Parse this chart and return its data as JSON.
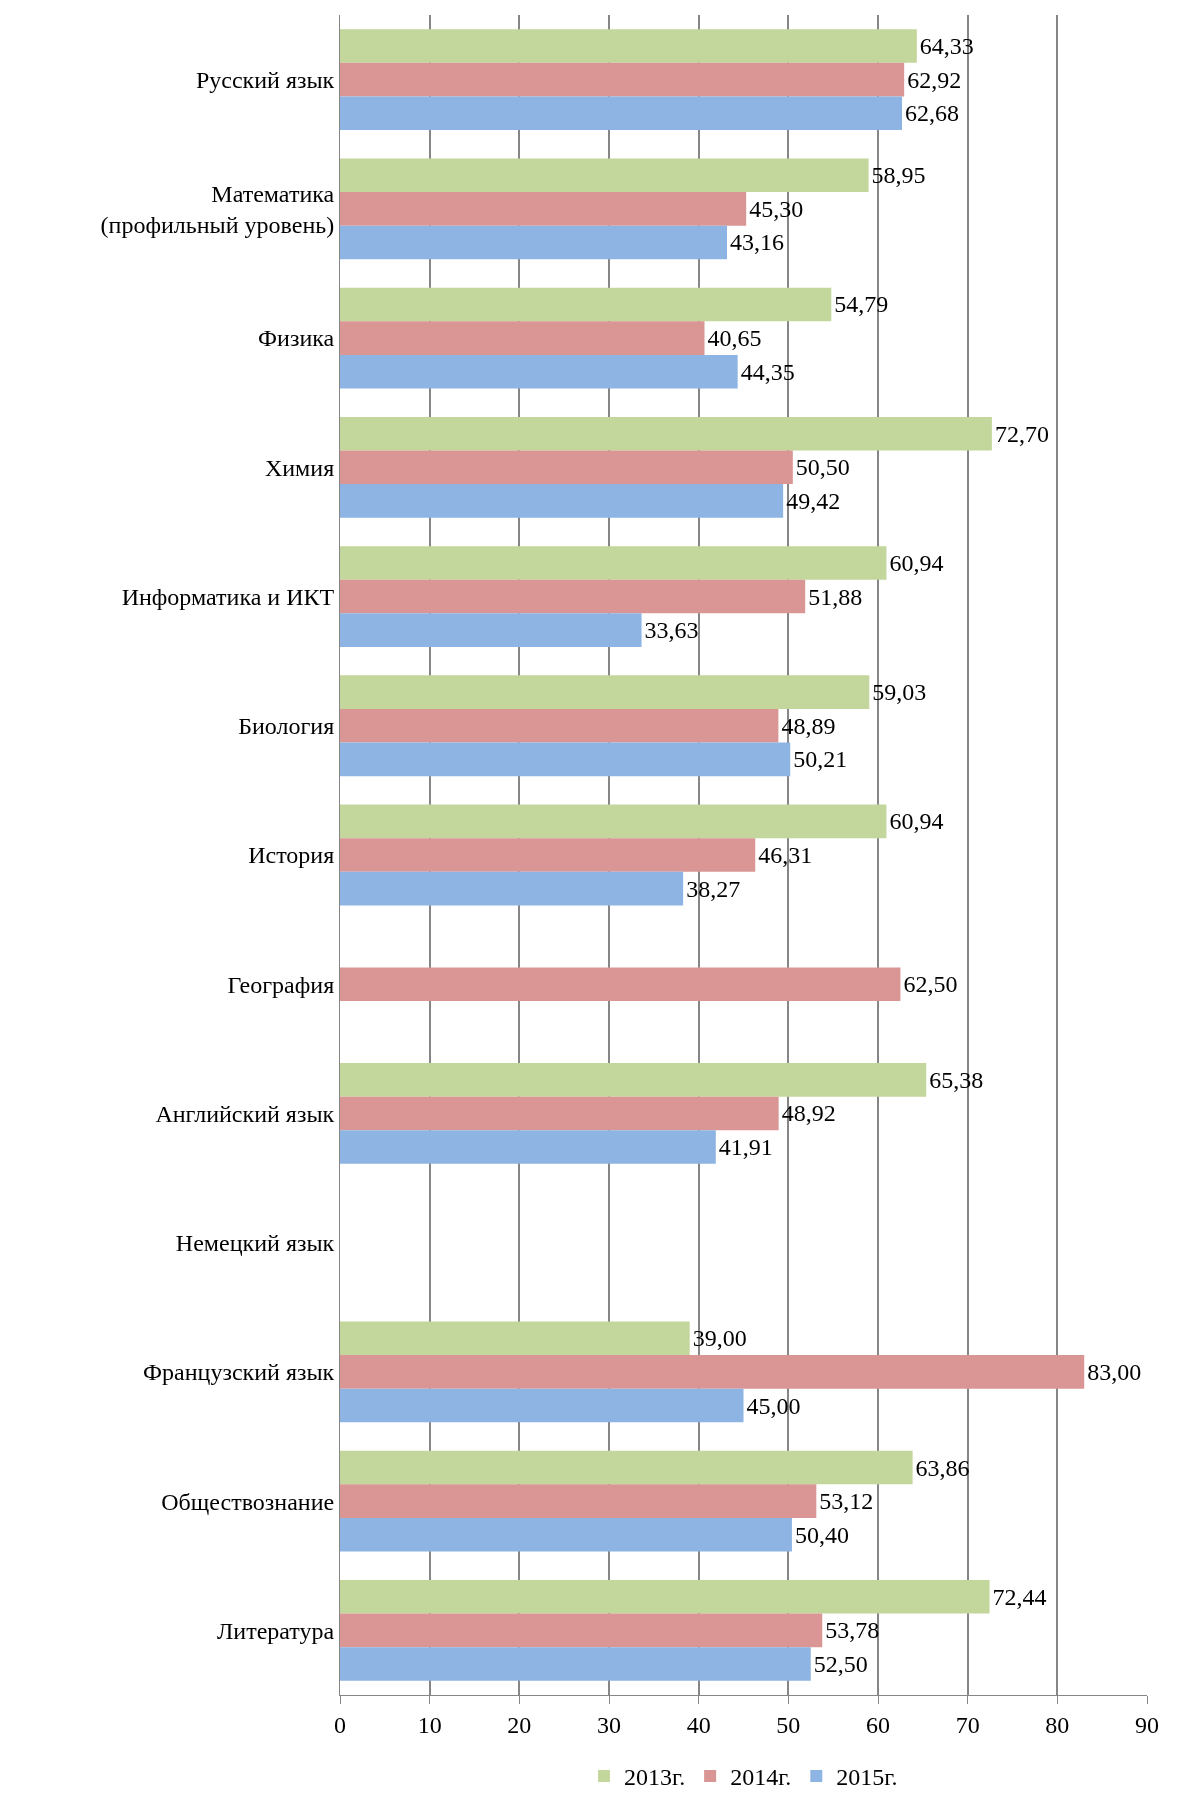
{
  "chart_data": {
    "type": "bar",
    "orientation": "horizontal",
    "categories": [
      "Русский язык",
      "Математика\n(профильный уровень)",
      "Физика",
      "Химия",
      "Информатика и ИКТ",
      "Биология",
      "История",
      "География",
      "Английский язык",
      "Немецкий язык",
      "Французский язык",
      "Обществознание",
      "Литература"
    ],
    "series": [
      {
        "name": "2013г.",
        "color": "#c3d69b",
        "values": [
          64.33,
          58.95,
          54.79,
          72.7,
          60.94,
          59.03,
          60.94,
          null,
          65.38,
          null,
          39.0,
          63.86,
          72.44
        ],
        "value_labels": [
          "64,33",
          "58,95",
          "54,79",
          "72,70",
          "60,94",
          "59,03",
          "60,94",
          null,
          "65,38",
          null,
          "39,00",
          "63,86",
          "72,44"
        ]
      },
      {
        "name": "2014г.",
        "color": "#d99694",
        "values": [
          62.92,
          45.3,
          40.65,
          50.5,
          51.88,
          48.89,
          46.31,
          62.5,
          48.92,
          null,
          83.0,
          53.12,
          53.78
        ],
        "value_labels": [
          "62,92",
          "45,30",
          "40,65",
          "50,50",
          "51,88",
          "48,89",
          "46,31",
          "62,50",
          "48,92",
          null,
          "83,00",
          "53,12",
          "53,78"
        ]
      },
      {
        "name": "2015г.",
        "color": "#8eb4e3",
        "values": [
          62.68,
          43.16,
          44.35,
          49.42,
          33.63,
          50.21,
          38.27,
          null,
          41.91,
          null,
          45.0,
          50.4,
          52.5
        ],
        "value_labels": [
          "62,68",
          "43,16",
          "44,35",
          "49,42",
          "33,63",
          "50,21",
          "38,27",
          null,
          "41,91",
          null,
          "45,00",
          "50,40",
          "52,50"
        ]
      }
    ],
    "xlim": [
      0,
      90
    ],
    "xticks": [
      0,
      10,
      20,
      30,
      40,
      50,
      60,
      70,
      80,
      90
    ],
    "grid": "x",
    "legend": "bottom"
  }
}
